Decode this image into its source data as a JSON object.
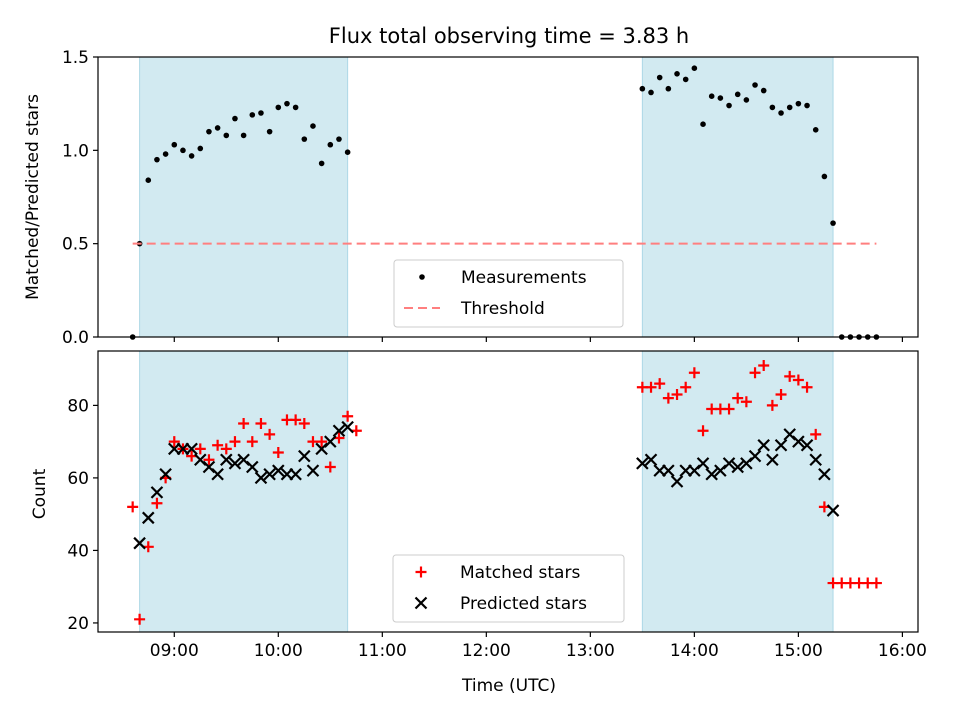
{
  "chart_data": [
    {
      "type": "scatter",
      "title": "Flux total observing time = 3.83 h",
      "ylabel": "Matched/Predicted stars",
      "xlabel": "",
      "ylim": [
        0,
        1.5
      ],
      "yticks": [
        "0.0",
        "0.5",
        "1.0",
        "1.5"
      ],
      "x_range": [
        "08:16",
        "16:09"
      ],
      "shaded_intervals": [
        [
          "08:40",
          "10:40"
        ],
        [
          "13:30",
          "15:20"
        ]
      ],
      "shade_color": "#add8e6",
      "legend_position": "lower-center",
      "series": [
        {
          "name": "Measurements",
          "marker": "dot",
          "color": "#000000",
          "points": [
            [
              "08:36",
              0.0
            ],
            [
              "08:40",
              0.5
            ],
            [
              "08:45",
              0.84
            ],
            [
              "08:50",
              0.95
            ],
            [
              "08:55",
              0.98
            ],
            [
              "09:00",
              1.03
            ],
            [
              "09:05",
              1.0
            ],
            [
              "09:10",
              0.97
            ],
            [
              "09:15",
              1.01
            ],
            [
              "09:20",
              1.1
            ],
            [
              "09:25",
              1.12
            ],
            [
              "09:30",
              1.08
            ],
            [
              "09:35",
              1.17
            ],
            [
              "09:40",
              1.08
            ],
            [
              "09:45",
              1.19
            ],
            [
              "09:50",
              1.2
            ],
            [
              "09:55",
              1.1
            ],
            [
              "10:00",
              1.23
            ],
            [
              "10:05",
              1.25
            ],
            [
              "10:10",
              1.23
            ],
            [
              "10:15",
              1.06
            ],
            [
              "10:20",
              1.13
            ],
            [
              "10:25",
              0.93
            ],
            [
              "10:30",
              1.03
            ],
            [
              "10:35",
              1.06
            ],
            [
              "10:40",
              0.99
            ],
            [
              "13:30",
              1.33
            ],
            [
              "13:35",
              1.31
            ],
            [
              "13:40",
              1.39
            ],
            [
              "13:45",
              1.33
            ],
            [
              "13:50",
              1.41
            ],
            [
              "13:55",
              1.38
            ],
            [
              "14:00",
              1.44
            ],
            [
              "14:05",
              1.14
            ],
            [
              "14:10",
              1.29
            ],
            [
              "14:15",
              1.28
            ],
            [
              "14:20",
              1.24
            ],
            [
              "14:25",
              1.3
            ],
            [
              "14:30",
              1.27
            ],
            [
              "14:35",
              1.35
            ],
            [
              "14:40",
              1.32
            ],
            [
              "14:45",
              1.23
            ],
            [
              "14:50",
              1.2
            ],
            [
              "14:55",
              1.23
            ],
            [
              "15:00",
              1.25
            ],
            [
              "15:05",
              1.24
            ],
            [
              "15:10",
              1.11
            ],
            [
              "15:15",
              0.86
            ],
            [
              "15:20",
              0.61
            ],
            [
              "15:25",
              0.0
            ],
            [
              "15:30",
              0.0
            ],
            [
              "15:35",
              0.0
            ],
            [
              "15:40",
              0.0
            ],
            [
              "15:45",
              0.0
            ]
          ]
        },
        {
          "name": "Threshold",
          "type": "line",
          "style": "dashed",
          "color": "#ff7f7f",
          "points": [
            [
              "08:36",
              0.5
            ],
            [
              "15:45",
              0.5
            ]
          ]
        }
      ]
    },
    {
      "type": "scatter",
      "title": "",
      "ylabel": "Count",
      "xlabel": "Time (UTC)",
      "ylim": [
        17.5,
        95
      ],
      "yticks": [
        "20",
        "40",
        "60",
        "80"
      ],
      "x_range": [
        "08:16",
        "16:09"
      ],
      "xticks": [
        "09:00",
        "10:00",
        "11:00",
        "12:00",
        "13:00",
        "14:00",
        "15:00",
        "16:00"
      ],
      "shaded_intervals": [
        [
          "08:40",
          "10:40"
        ],
        [
          "13:30",
          "15:20"
        ]
      ],
      "shade_color": "#add8e6",
      "legend_position": "lower-center",
      "series": [
        {
          "name": "Matched stars",
          "marker": "plus",
          "color": "#ff0000",
          "points": [
            [
              "08:36",
              52
            ],
            [
              "08:40",
              21
            ],
            [
              "08:45",
              41
            ],
            [
              "08:50",
              53
            ],
            [
              "08:55",
              60
            ],
            [
              "09:00",
              70
            ],
            [
              "09:05",
              68
            ],
            [
              "09:10",
              66
            ],
            [
              "09:15",
              68
            ],
            [
              "09:20",
              65
            ],
            [
              "09:25",
              69
            ],
            [
              "09:30",
              68
            ],
            [
              "09:35",
              70
            ],
            [
              "09:40",
              75
            ],
            [
              "09:45",
              70
            ],
            [
              "09:50",
              75
            ],
            [
              "09:55",
              72
            ],
            [
              "10:00",
              67
            ],
            [
              "10:05",
              76
            ],
            [
              "10:10",
              76
            ],
            [
              "10:15",
              75
            ],
            [
              "10:20",
              70
            ],
            [
              "10:25",
              70
            ],
            [
              "10:30",
              63
            ],
            [
              "10:35",
              71
            ],
            [
              "10:40",
              77
            ],
            [
              "10:45",
              73
            ],
            [
              "13:30",
              85
            ],
            [
              "13:35",
              85
            ],
            [
              "13:40",
              86
            ],
            [
              "13:45",
              82
            ],
            [
              "13:50",
              83
            ],
            [
              "13:55",
              85
            ],
            [
              "14:00",
              89
            ],
            [
              "14:05",
              73
            ],
            [
              "14:10",
              79
            ],
            [
              "14:15",
              79
            ],
            [
              "14:20",
              79
            ],
            [
              "14:25",
              82
            ],
            [
              "14:30",
              81
            ],
            [
              "14:35",
              89
            ],
            [
              "14:40",
              91
            ],
            [
              "14:45",
              80
            ],
            [
              "14:50",
              83
            ],
            [
              "14:55",
              88
            ],
            [
              "15:00",
              87
            ],
            [
              "15:05",
              85
            ],
            [
              "15:10",
              72
            ],
            [
              "15:15",
              52
            ],
            [
              "15:20",
              31
            ],
            [
              "15:25",
              31
            ],
            [
              "15:30",
              31
            ],
            [
              "15:35",
              31
            ],
            [
              "15:40",
              31
            ],
            [
              "15:45",
              31
            ]
          ]
        },
        {
          "name": "Predicted stars",
          "marker": "x",
          "color": "#000000",
          "points": [
            [
              "08:40",
              42
            ],
            [
              "08:45",
              49
            ],
            [
              "08:50",
              56
            ],
            [
              "08:55",
              61
            ],
            [
              "09:00",
              68
            ],
            [
              "09:05",
              68
            ],
            [
              "09:10",
              68
            ],
            [
              "09:15",
              65
            ],
            [
              "09:20",
              63
            ],
            [
              "09:25",
              61
            ],
            [
              "09:30",
              65
            ],
            [
              "09:35",
              64
            ],
            [
              "09:40",
              65
            ],
            [
              "09:45",
              63
            ],
            [
              "09:50",
              60
            ],
            [
              "09:55",
              61
            ],
            [
              "10:00",
              62
            ],
            [
              "10:05",
              61
            ],
            [
              "10:10",
              61
            ],
            [
              "10:15",
              66
            ],
            [
              "10:20",
              62
            ],
            [
              "10:25",
              68
            ],
            [
              "10:30",
              70
            ],
            [
              "10:35",
              73
            ],
            [
              "10:40",
              74
            ],
            [
              "13:30",
              64
            ],
            [
              "13:35",
              65
            ],
            [
              "13:40",
              62
            ],
            [
              "13:45",
              62
            ],
            [
              "13:50",
              59
            ],
            [
              "13:55",
              62
            ],
            [
              "14:00",
              62
            ],
            [
              "14:05",
              64
            ],
            [
              "14:10",
              61
            ],
            [
              "14:15",
              62
            ],
            [
              "14:20",
              64
            ],
            [
              "14:25",
              63
            ],
            [
              "14:30",
              64
            ],
            [
              "14:35",
              66
            ],
            [
              "14:40",
              69
            ],
            [
              "14:45",
              65
            ],
            [
              "14:50",
              69
            ],
            [
              "14:55",
              72
            ],
            [
              "15:00",
              70
            ],
            [
              "15:05",
              69
            ],
            [
              "15:10",
              65
            ],
            [
              "15:15",
              61
            ],
            [
              "15:20",
              51
            ]
          ]
        }
      ]
    }
  ]
}
